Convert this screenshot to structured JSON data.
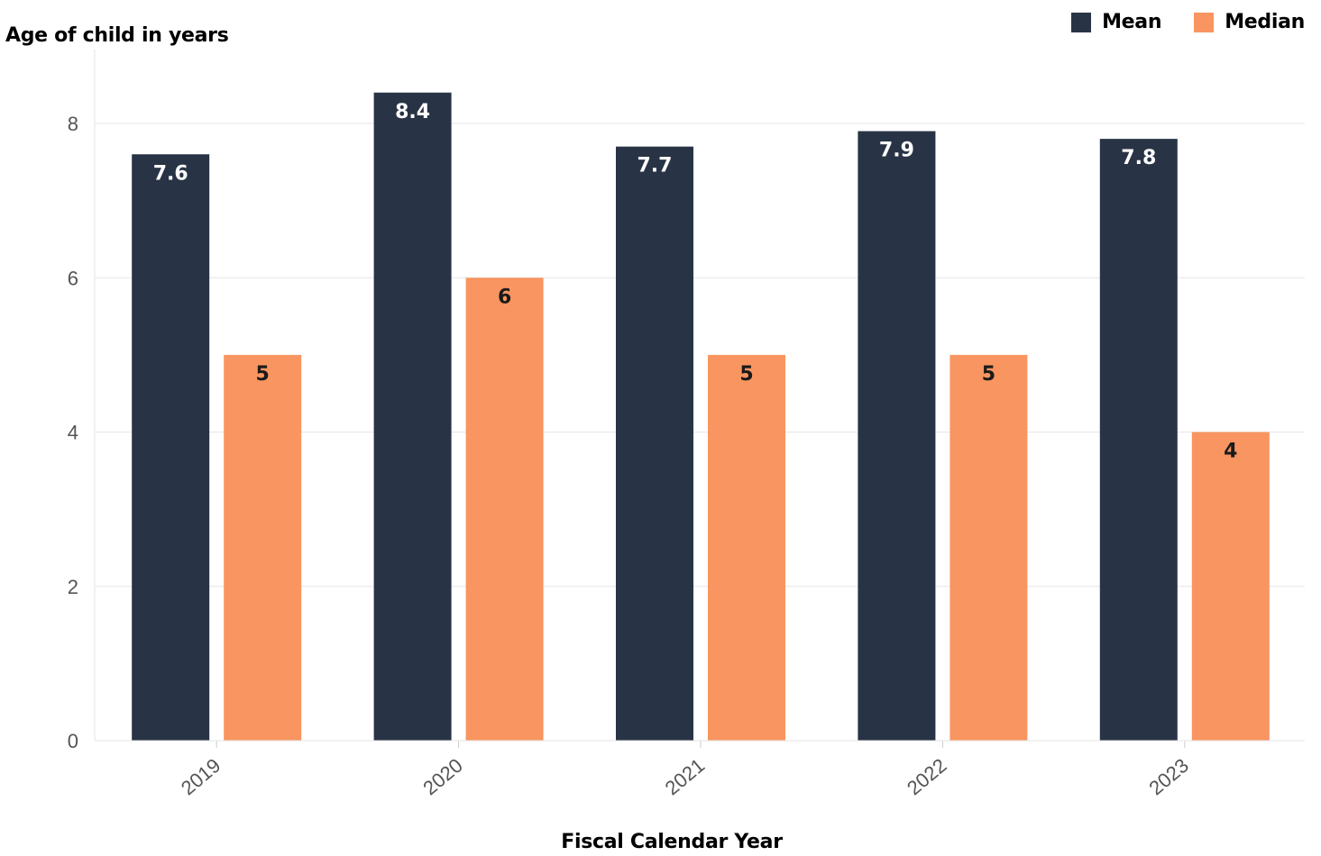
{
  "chart_data": {
    "type": "bar",
    "xlabel": "Fiscal Calendar Year",
    "ylabel": "Age of child in years",
    "categories": [
      "2019",
      "2020",
      "2021",
      "2022",
      "2023"
    ],
    "series": [
      {
        "name": "Mean",
        "values": [
          7.6,
          8.4,
          7.7,
          7.9,
          7.8
        ],
        "labels": [
          "7.6",
          "8.4",
          "7.7",
          "7.9",
          "7.8"
        ],
        "color": "#283445",
        "label_color": "#ffffff"
      },
      {
        "name": "Median",
        "values": [
          5,
          6,
          5,
          5,
          4
        ],
        "labels": [
          "5",
          "6",
          "5",
          "5",
          "4"
        ],
        "color": "#f99560",
        "label_color": "#1a1a1a"
      }
    ],
    "ylim": [
      0,
      8.4
    ],
    "yticks": [
      0,
      2,
      4,
      6,
      8
    ],
    "ytick_labels": [
      "0",
      "2",
      "4",
      "6",
      "8"
    ],
    "grid": true,
    "legend_position": "top-right"
  }
}
